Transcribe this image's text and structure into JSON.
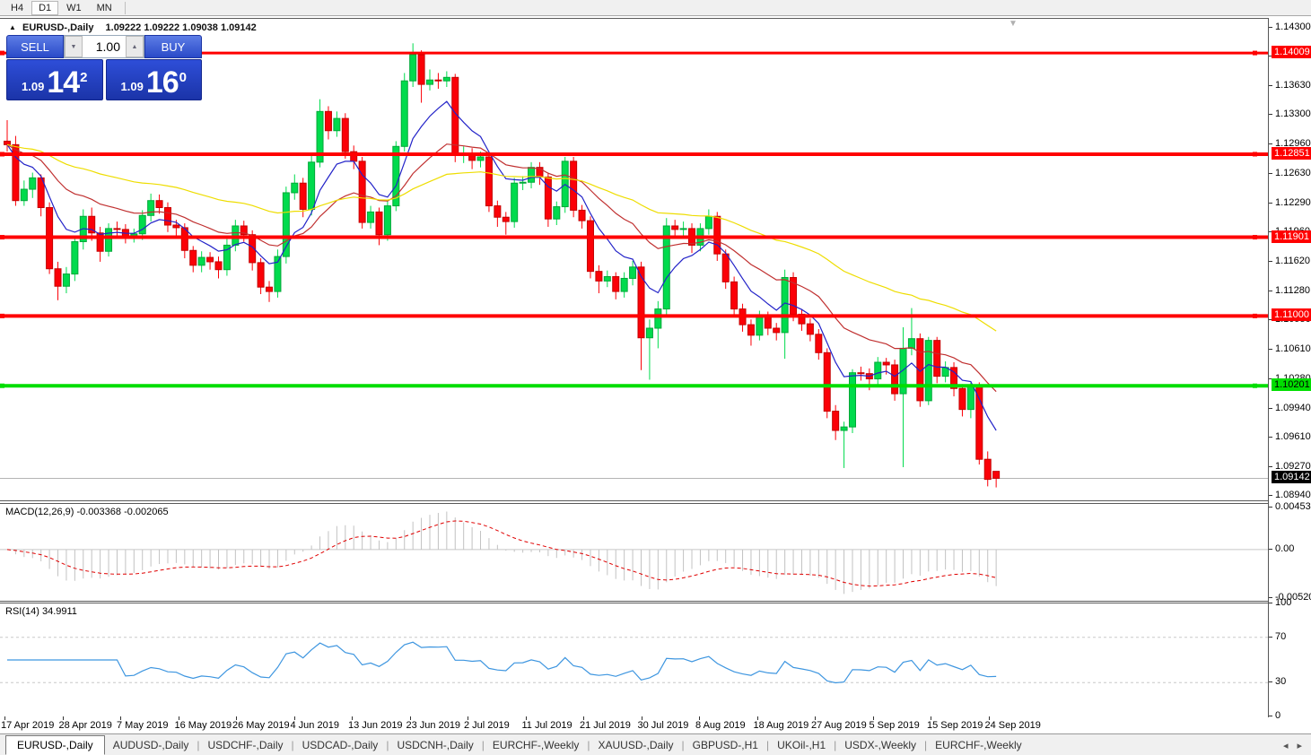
{
  "icons": {
    "expand_arrow": "▲",
    "spinner_down": "▼",
    "spinner_up": "▲",
    "shift_marker": "▼",
    "tabs_scroll_left": "◂",
    "tabs_scroll_right": "▸"
  },
  "toolbar": {
    "timeframes": [
      {
        "label": "H4",
        "active": false
      },
      {
        "label": "D1",
        "active": true
      },
      {
        "label": "W1",
        "active": false
      },
      {
        "label": "MN",
        "active": false
      }
    ]
  },
  "header": {
    "symbol": "EURUSD-,Daily",
    "ohlc": "1.09222 1.09222 1.09038 1.09142"
  },
  "trade_panel": {
    "sell_label": "SELL",
    "buy_label": "BUY",
    "volume": "1.00",
    "sell_price": {
      "prefix": "1.09",
      "main": "14",
      "sup": "2"
    },
    "buy_price": {
      "prefix": "1.09",
      "main": "16",
      "sup": "0"
    }
  },
  "indicators": {
    "macd": {
      "label": "MACD(12,26,9) -0.003368 -0.002065",
      "name": "MACD",
      "params": "12,26,9",
      "values": [
        "-0.003368",
        "-0.002065"
      ],
      "axis_ticks": [
        "0.004536",
        "0.00",
        "-0.005205"
      ],
      "range": [
        -0.0055,
        0.0049
      ]
    },
    "rsi": {
      "label": "RSI(14) 34.9911",
      "name": "RSI",
      "params": "14",
      "value": "34.9911",
      "axis_ticks": [
        "100",
        "70",
        "30",
        "0"
      ],
      "level_lines": [
        70,
        30
      ],
      "range": [
        0,
        100
      ]
    }
  },
  "price_axis": {
    "ticks": [
      "1.14300",
      "1.13970",
      "1.13630",
      "1.13300",
      "1.12960",
      "1.12630",
      "1.12290",
      "1.11960",
      "1.11620",
      "1.11280",
      "1.10950",
      "1.10610",
      "1.10280",
      "1.09940",
      "1.09610",
      "1.09270",
      "1.08940"
    ],
    "range": [
      1.0889,
      1.144
    ]
  },
  "levels": [
    {
      "price": 1.14009,
      "label": "1.14009",
      "color": "#ff0000",
      "text_color": "#ffffff",
      "thickness": 3
    },
    {
      "price": 1.12851,
      "label": "1.12851",
      "color": "#ff0000",
      "text_color": "#ffffff",
      "thickness": 4
    },
    {
      "price": 1.11901,
      "label": "1.11901",
      "color": "#ff0000",
      "text_color": "#ffffff",
      "thickness": 4
    },
    {
      "price": 1.11,
      "label": "1.11000",
      "color": "#ff0000",
      "text_color": "#ffffff",
      "thickness": 4
    },
    {
      "price": 1.10201,
      "label": "1.10201",
      "color": "#00de00",
      "text_color": "#000000",
      "thickness": 4
    }
  ],
  "current_price": {
    "value": 1.09142,
    "label": "1.09142",
    "badge_bg": "#000000",
    "badge_text": "#ffffff",
    "line_color": "#b4b4b4"
  },
  "chart_data": {
    "type": "candlestick",
    "symbol": "EURUSD-",
    "timeframe": "Daily",
    "up_color": "#00db4d",
    "down_color": "#fb0007",
    "date_labels": [
      "17 Apr 2019",
      "28 Apr 2019",
      "7 May 2019",
      "16 May 2019",
      "26 May 2019",
      "4 Jun 2019",
      "13 Jun 2019",
      "23 Jun 2019",
      "2 Jul 2019",
      "11 Jul 2019",
      "21 Jul 2019",
      "30 Jul 2019",
      "8 Aug 2019",
      "18 Aug 2019",
      "27 Aug 2019",
      "5 Sep 2019",
      "15 Sep 2019",
      "24 Sep 2019"
    ],
    "moving_averages": [
      {
        "type": "EMA",
        "period": 8,
        "color": "#2323c8"
      },
      {
        "type": "EMA",
        "period": 21,
        "color": "#c03030"
      },
      {
        "type": "EMA",
        "period": 55,
        "color": "#eedd00"
      }
    ],
    "macd_histogram_color": "#c2c2c2",
    "macd_signal_color": "#e00000",
    "rsi_color": "#3e96e0",
    "candles": [
      [
        1.13,
        1.1324,
        1.1288,
        1.1296
      ],
      [
        1.1296,
        1.1306,
        1.1226,
        1.1232
      ],
      [
        1.1232,
        1.1255,
        1.1226,
        1.1245
      ],
      [
        1.1245,
        1.1264,
        1.1235,
        1.1258
      ],
      [
        1.1258,
        1.1262,
        1.1214,
        1.1224
      ],
      [
        1.1224,
        1.123,
        1.1148,
        1.1154
      ],
      [
        1.1154,
        1.1162,
        1.1118,
        1.1134
      ],
      [
        1.1134,
        1.1156,
        1.1126,
        1.1148
      ],
      [
        1.1148,
        1.1192,
        1.114,
        1.1185
      ],
      [
        1.1185,
        1.1222,
        1.1176,
        1.1214
      ],
      [
        1.1214,
        1.1224,
        1.1186,
        1.1195
      ],
      [
        1.1195,
        1.1202,
        1.1162,
        1.1174
      ],
      [
        1.1174,
        1.1206,
        1.1168,
        1.12
      ],
      [
        1.12,
        1.1208,
        1.119,
        1.1199
      ],
      [
        1.1199,
        1.1205,
        1.1183,
        1.1191
      ],
      [
        1.1191,
        1.12,
        1.1184,
        1.1194
      ],
      [
        1.1194,
        1.1221,
        1.1187,
        1.1215
      ],
      [
        1.1215,
        1.124,
        1.1208,
        1.1232
      ],
      [
        1.1232,
        1.1239,
        1.1217,
        1.1224
      ],
      [
        1.1224,
        1.123,
        1.1196,
        1.1204
      ],
      [
        1.1204,
        1.121,
        1.1192,
        1.1201
      ],
      [
        1.1201,
        1.1206,
        1.1166,
        1.1175
      ],
      [
        1.1175,
        1.118,
        1.115,
        1.1158
      ],
      [
        1.1158,
        1.1174,
        1.115,
        1.1167
      ],
      [
        1.1167,
        1.1173,
        1.1153,
        1.1162
      ],
      [
        1.1162,
        1.1168,
        1.1143,
        1.1153
      ],
      [
        1.1153,
        1.1188,
        1.1146,
        1.1181
      ],
      [
        1.1181,
        1.121,
        1.1174,
        1.1203
      ],
      [
        1.1203,
        1.1209,
        1.1185,
        1.1193
      ],
      [
        1.1193,
        1.1198,
        1.1152,
        1.1161
      ],
      [
        1.1161,
        1.1166,
        1.1125,
        1.1133
      ],
      [
        1.1133,
        1.114,
        1.1116,
        1.1128
      ],
      [
        1.1128,
        1.1176,
        1.1121,
        1.1168
      ],
      [
        1.1168,
        1.1248,
        1.116,
        1.1241
      ],
      [
        1.1241,
        1.1262,
        1.1233,
        1.1252
      ],
      [
        1.1252,
        1.1258,
        1.1213,
        1.1222
      ],
      [
        1.1222,
        1.1283,
        1.1215,
        1.1276
      ],
      [
        1.1276,
        1.1348,
        1.127,
        1.1334
      ],
      [
        1.1334,
        1.134,
        1.1302,
        1.1312
      ],
      [
        1.1312,
        1.1334,
        1.1305,
        1.1326
      ],
      [
        1.1326,
        1.1332,
        1.128,
        1.1288
      ],
      [
        1.1288,
        1.1295,
        1.1268,
        1.1277
      ],
      [
        1.1277,
        1.1282,
        1.12,
        1.1207
      ],
      [
        1.1207,
        1.1226,
        1.12,
        1.1219
      ],
      [
        1.1219,
        1.1224,
        1.1181,
        1.1193
      ],
      [
        1.1193,
        1.1232,
        1.1186,
        1.1226
      ],
      [
        1.1226,
        1.13,
        1.122,
        1.1294
      ],
      [
        1.1294,
        1.1378,
        1.1288,
        1.1369
      ],
      [
        1.1369,
        1.1412,
        1.1362,
        1.1399
      ],
      [
        1.1399,
        1.1404,
        1.1344,
        1.1365
      ],
      [
        1.1365,
        1.1382,
        1.1358,
        1.137
      ],
      [
        1.137,
        1.1378,
        1.136,
        1.1369
      ],
      [
        1.1369,
        1.138,
        1.1362,
        1.1373
      ],
      [
        1.1373,
        1.1377,
        1.1276,
        1.1285
      ],
      [
        1.1285,
        1.1294,
        1.1275,
        1.1285
      ],
      [
        1.1285,
        1.1292,
        1.1268,
        1.1278
      ],
      [
        1.1278,
        1.1288,
        1.127,
        1.1282
      ],
      [
        1.1282,
        1.1286,
        1.1219,
        1.1226
      ],
      [
        1.1226,
        1.1232,
        1.1202,
        1.1213
      ],
      [
        1.1213,
        1.1219,
        1.1193,
        1.1208
      ],
      [
        1.1208,
        1.1258,
        1.1201,
        1.1252
      ],
      [
        1.1252,
        1.126,
        1.1244,
        1.1253
      ],
      [
        1.1253,
        1.1276,
        1.1246,
        1.127
      ],
      [
        1.127,
        1.1276,
        1.125,
        1.1259
      ],
      [
        1.1259,
        1.1264,
        1.1202,
        1.1211
      ],
      [
        1.1211,
        1.1231,
        1.1204,
        1.1225
      ],
      [
        1.1225,
        1.1282,
        1.1218,
        1.1277
      ],
      [
        1.1277,
        1.1282,
        1.1213,
        1.1221
      ],
      [
        1.1221,
        1.1227,
        1.12,
        1.1209
      ],
      [
        1.1209,
        1.1214,
        1.1143,
        1.1151
      ],
      [
        1.1151,
        1.1158,
        1.1126,
        1.114
      ],
      [
        1.114,
        1.1152,
        1.1133,
        1.1145
      ],
      [
        1.1145,
        1.115,
        1.1119,
        1.1128
      ],
      [
        1.1128,
        1.115,
        1.1121,
        1.1143
      ],
      [
        1.1143,
        1.1163,
        1.1135,
        1.1156
      ],
      [
        1.1156,
        1.1162,
        1.1038,
        1.1075
      ],
      [
        1.1075,
        1.1096,
        1.1027,
        1.1086
      ],
      [
        1.1086,
        1.1117,
        1.1063,
        1.1108
      ],
      [
        1.1108,
        1.1212,
        1.1101,
        1.1203
      ],
      [
        1.1203,
        1.121,
        1.119,
        1.1199
      ],
      [
        1.1199,
        1.1208,
        1.1191,
        1.12
      ],
      [
        1.12,
        1.1206,
        1.1172,
        1.1181
      ],
      [
        1.1181,
        1.1206,
        1.1174,
        1.12
      ],
      [
        1.12,
        1.1222,
        1.1193,
        1.1214
      ],
      [
        1.1214,
        1.1219,
        1.1163,
        1.1171
      ],
      [
        1.1171,
        1.1176,
        1.1131,
        1.1139
      ],
      [
        1.1139,
        1.1145,
        1.11,
        1.1108
      ],
      [
        1.1108,
        1.1114,
        1.1082,
        1.109
      ],
      [
        1.109,
        1.1096,
        1.1066,
        1.1078
      ],
      [
        1.1078,
        1.1106,
        1.1072,
        1.1099
      ],
      [
        1.1099,
        1.1105,
        1.1078,
        1.1086
      ],
      [
        1.1086,
        1.1092,
        1.1072,
        1.1081
      ],
      [
        1.1081,
        1.1153,
        1.1051,
        1.1144
      ],
      [
        1.1144,
        1.115,
        1.1094,
        1.1102
      ],
      [
        1.1102,
        1.1108,
        1.1083,
        1.1091
      ],
      [
        1.1091,
        1.1097,
        1.1071,
        1.1079
      ],
      [
        1.1079,
        1.1085,
        1.105,
        1.1058
      ],
      [
        1.1058,
        1.1063,
        1.0983,
        1.0991
      ],
      [
        1.0991,
        1.0998,
        1.0958,
        1.0969
      ],
      [
        1.0969,
        1.0979,
        1.0926,
        1.0973
      ],
      [
        1.0973,
        1.1039,
        1.0966,
        1.1035
      ],
      [
        1.1035,
        1.1042,
        1.1026,
        1.1034
      ],
      [
        1.1034,
        1.104,
        1.1015,
        1.1028
      ],
      [
        1.1028,
        1.1053,
        1.1021,
        1.1047
      ],
      [
        1.1047,
        1.1052,
        1.1033,
        1.1044
      ],
      [
        1.1044,
        1.105,
        1.1003,
        1.1011
      ],
      [
        1.1011,
        1.1087,
        1.0927,
        1.1063
      ],
      [
        1.1063,
        1.1109,
        1.1055,
        1.1074
      ],
      [
        1.1074,
        1.108,
        1.0996,
        1.1003
      ],
      [
        1.1003,
        1.1076,
        1.0998,
        1.1072
      ],
      [
        1.1072,
        1.1076,
        1.1023,
        1.1031
      ],
      [
        1.1031,
        1.1048,
        1.1024,
        1.1041
      ],
      [
        1.1041,
        1.1047,
        1.1008,
        1.1017
      ],
      [
        1.1017,
        1.1022,
        1.0985,
        1.0993
      ],
      [
        1.0993,
        1.1024,
        1.0983,
        1.102
      ],
      [
        1.102,
        1.1024,
        1.093,
        1.0936
      ],
      [
        1.0936,
        1.0945,
        1.0905,
        1.0913
      ],
      [
        1.09222,
        1.09222,
        1.09038,
        1.09142
      ]
    ]
  },
  "tabs": {
    "items": [
      {
        "label": "EURUSD-,Daily",
        "active": true
      },
      {
        "label": "AUDUSD-,Daily",
        "active": false
      },
      {
        "label": "USDCHF-,Daily",
        "active": false
      },
      {
        "label": "USDCAD-,Daily",
        "active": false
      },
      {
        "label": "USDCNH-,Daily",
        "active": false
      },
      {
        "label": "EURCHF-,Weekly",
        "active": false
      },
      {
        "label": "XAUUSD-,Daily",
        "active": false
      },
      {
        "label": "GBPUSD-,H1",
        "active": false
      },
      {
        "label": "UKOil-,H1",
        "active": false
      },
      {
        "label": "USDX-,Weekly",
        "active": false
      },
      {
        "label": "EURCHF-,Weekly",
        "active": false
      }
    ]
  }
}
